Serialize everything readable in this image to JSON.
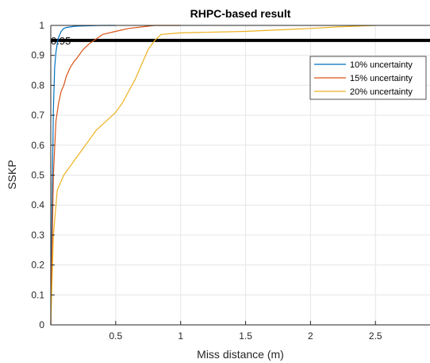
{
  "chart_data": {
    "type": "line",
    "title": "RHPC-based result",
    "xlabel": "Miss distance (m)",
    "ylabel": "SSKP",
    "xlim": [
      0,
      2.92
    ],
    "ylim": [
      0,
      1
    ],
    "x_ticks": [
      0.5,
      1,
      1.5,
      2,
      2.5
    ],
    "x_tick_labels": [
      "0.5",
      "1",
      "1.5",
      "2",
      "2.5"
    ],
    "y_ticks": [
      0,
      0.1,
      0.2,
      0.3,
      0.4,
      0.5,
      0.6,
      0.7,
      0.8,
      0.9,
      1
    ],
    "y_tick_labels": [
      "0",
      "0.1",
      "0.2",
      "0.3",
      "0.4",
      "0.5",
      "0.6",
      "0.7",
      "0.8",
      "0.9",
      "1"
    ],
    "grid": true,
    "legend_position": "top-right",
    "threshold": {
      "y": 0.95,
      "label": "0.95",
      "color": "#000000"
    },
    "series": [
      {
        "name": "10% uncertainty",
        "color": "#0072BD",
        "x": [
          0,
          0.01,
          0.02,
          0.03,
          0.04,
          0.05,
          0.06,
          0.07,
          0.08,
          0.09,
          0.1,
          0.12,
          0.15,
          0.18,
          0.22,
          0.3,
          0.4,
          0.5
        ],
        "y": [
          0,
          0.4,
          0.72,
          0.86,
          0.91,
          0.94,
          0.96,
          0.97,
          0.98,
          0.985,
          0.99,
          0.993,
          0.995,
          0.997,
          0.998,
          0.999,
          1,
          1
        ]
      },
      {
        "name": "15% uncertainty",
        "color": "#D95319",
        "x": [
          0,
          0.02,
          0.04,
          0.06,
          0.08,
          0.1,
          0.12,
          0.15,
          0.18,
          0.2,
          0.25,
          0.3,
          0.35,
          0.4,
          0.5,
          0.6,
          0.7,
          0.8,
          1.0
        ],
        "y": [
          0,
          0.5,
          0.68,
          0.74,
          0.78,
          0.8,
          0.83,
          0.86,
          0.88,
          0.89,
          0.92,
          0.94,
          0.955,
          0.97,
          0.98,
          0.99,
          0.995,
          1,
          1
        ]
      },
      {
        "name": "20% uncertainty",
        "color": "#EDB120",
        "x": [
          0,
          0.02,
          0.05,
          0.1,
          0.15,
          0.2,
          0.25,
          0.3,
          0.35,
          0.4,
          0.45,
          0.5,
          0.55,
          0.6,
          0.65,
          0.7,
          0.75,
          0.8,
          0.85,
          1.0,
          1.5,
          2.0,
          2.2,
          2.5
        ],
        "y": [
          0,
          0.3,
          0.45,
          0.5,
          0.53,
          0.56,
          0.59,
          0.62,
          0.65,
          0.67,
          0.69,
          0.71,
          0.74,
          0.78,
          0.82,
          0.87,
          0.92,
          0.95,
          0.97,
          0.975,
          0.98,
          0.99,
          0.995,
          1
        ]
      }
    ]
  }
}
